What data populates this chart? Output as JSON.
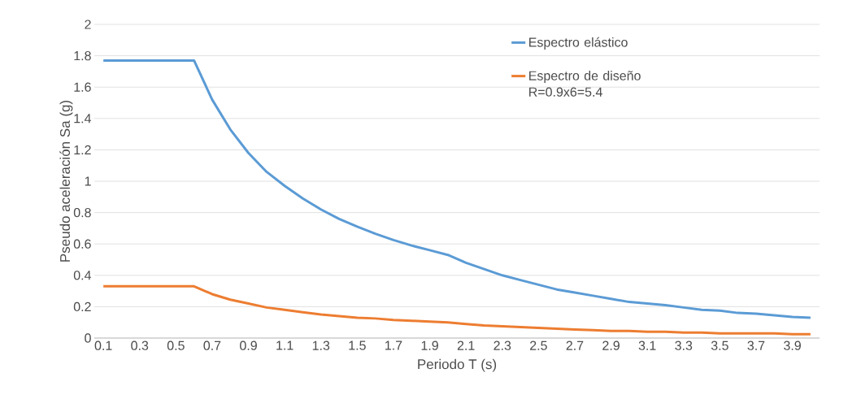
{
  "chart_data": {
    "type": "line",
    "xlabel": "Periodo T (s)",
    "ylabel": "Pseudo aceleración Sa (g)",
    "x": [
      0.1,
      0.2,
      0.3,
      0.4,
      0.5,
      0.6,
      0.7,
      0.8,
      0.9,
      1.0,
      1.1,
      1.2,
      1.3,
      1.4,
      1.5,
      1.6,
      1.7,
      1.8,
      1.9,
      2.0,
      2.1,
      2.2,
      2.3,
      2.4,
      2.5,
      2.6,
      2.7,
      2.8,
      2.9,
      3.0,
      3.1,
      3.2,
      3.3,
      3.4,
      3.5,
      3.6,
      3.7,
      3.8,
      3.9,
      4.0
    ],
    "series": [
      {
        "name": "Espectro elástico",
        "color": "#5b9bd5",
        "values": [
          1.77,
          1.77,
          1.77,
          1.77,
          1.77,
          1.77,
          1.52,
          1.33,
          1.18,
          1.06,
          0.97,
          0.89,
          0.82,
          0.76,
          0.71,
          0.665,
          0.625,
          0.59,
          0.56,
          0.53,
          0.48,
          0.44,
          0.4,
          0.37,
          0.34,
          0.31,
          0.29,
          0.27,
          0.25,
          0.23,
          0.22,
          0.21,
          0.195,
          0.18,
          0.175,
          0.16,
          0.155,
          0.145,
          0.135,
          0.13
        ]
      },
      {
        "name": "Espectro de diseño R=0.9x6=5.4",
        "color": "#ed7d31",
        "values": [
          0.33,
          0.33,
          0.33,
          0.33,
          0.33,
          0.33,
          0.28,
          0.245,
          0.22,
          0.195,
          0.18,
          0.165,
          0.15,
          0.14,
          0.13,
          0.125,
          0.115,
          0.11,
          0.105,
          0.1,
          0.09,
          0.08,
          0.075,
          0.07,
          0.065,
          0.06,
          0.055,
          0.05,
          0.045,
          0.045,
          0.04,
          0.04,
          0.035,
          0.035,
          0.03,
          0.03,
          0.03,
          0.03,
          0.025,
          0.025
        ]
      }
    ],
    "xlim": [
      0.05,
      4.05
    ],
    "xticks": [
      0.1,
      0.3,
      0.5,
      0.7,
      0.9,
      1.1,
      1.3,
      1.5,
      1.7,
      1.9,
      2.1,
      2.3,
      2.5,
      2.7,
      2.9,
      3.1,
      3.3,
      3.5,
      3.7,
      3.9
    ],
    "ylim": [
      0,
      2
    ],
    "yticks": [
      0,
      0.2,
      0.4,
      0.6,
      0.8,
      1,
      1.2,
      1.4,
      1.6,
      1.8,
      2
    ],
    "grid": "y",
    "legend": "top right",
    "marker": "none",
    "line_style": "solid"
  }
}
